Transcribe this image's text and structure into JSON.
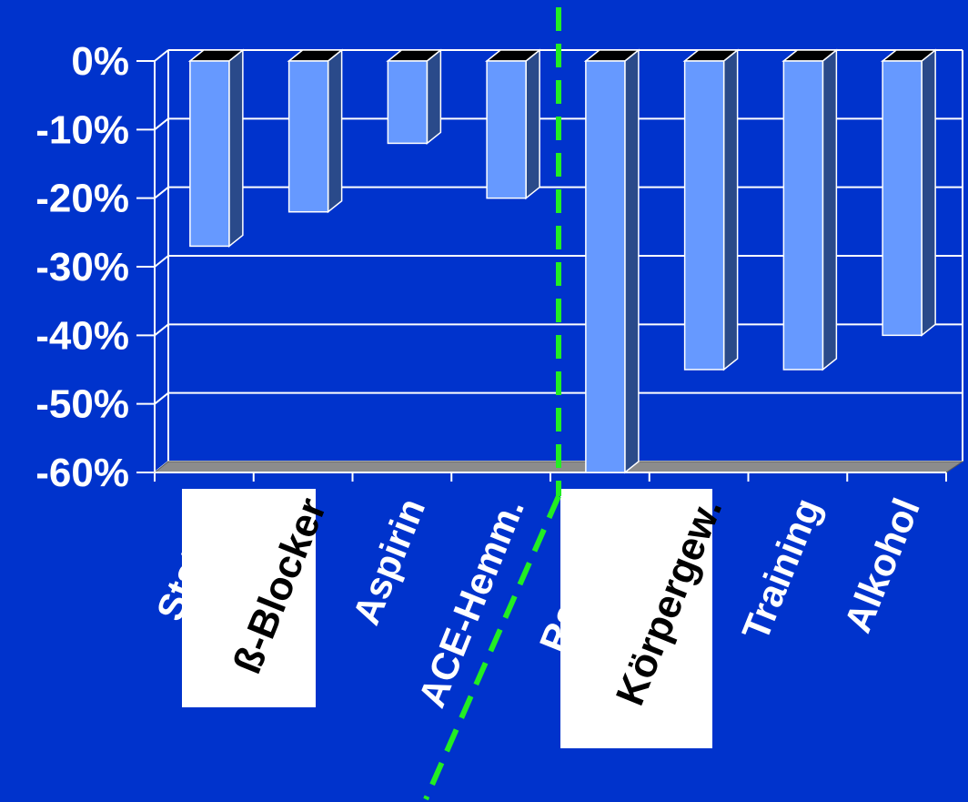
{
  "chart_data": {
    "type": "bar",
    "categories": [
      "Statine",
      "ß-Blocker",
      "Aspirin",
      "ACE-Hemm.",
      "Rauchen",
      "Körpergew.",
      "Training",
      "Alkohol"
    ],
    "values": [
      -27,
      -22,
      -12,
      -20,
      -60,
      -45,
      -45,
      -40
    ],
    "yticks": [
      "0%",
      "-10%",
      "-20%",
      "-30%",
      "-40%",
      "-50%",
      "-60%"
    ],
    "ylim": [
      -60,
      0
    ],
    "grid": true,
    "highlighted_labels": [
      "ß-Blocker",
      "Körpergew."
    ],
    "colors": {
      "background": "#0033cc",
      "bar_front": "#6699ff",
      "bar_side": "#2a4a8a",
      "bar_top": "#000000",
      "floor": "#8c8c8c",
      "grid": "#ffffff",
      "divider": "#22ee22"
    }
  }
}
